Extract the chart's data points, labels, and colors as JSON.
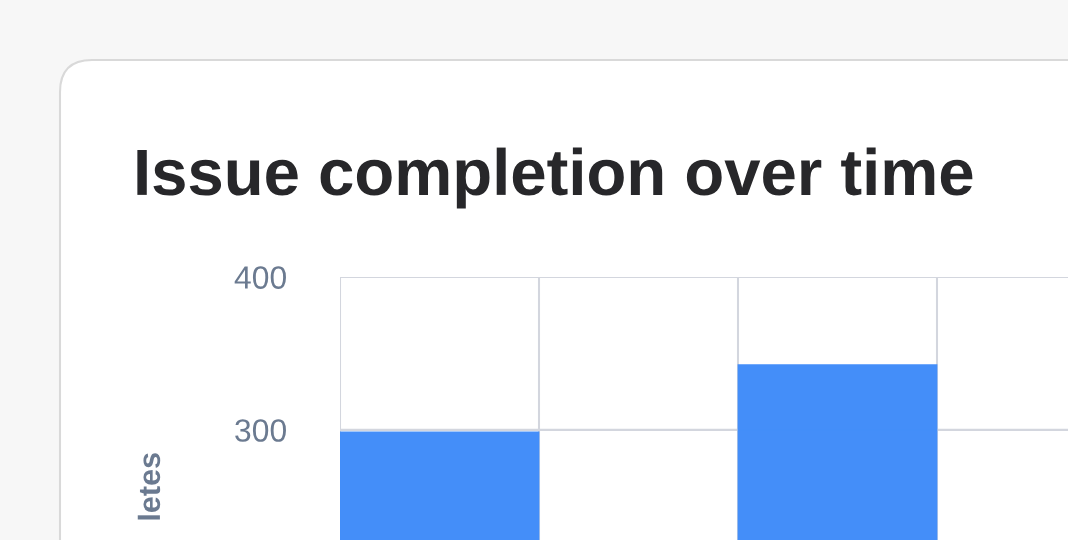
{
  "chart_data": {
    "type": "bar",
    "title": "Issue completion over time",
    "ylabel": "letes",
    "categories": [
      null,
      null
    ],
    "values": [
      299,
      343
    ],
    "color": "#408cf9",
    "ylim": [
      228,
      400
    ],
    "yticks": [
      300,
      400
    ],
    "grid": true
  }
}
